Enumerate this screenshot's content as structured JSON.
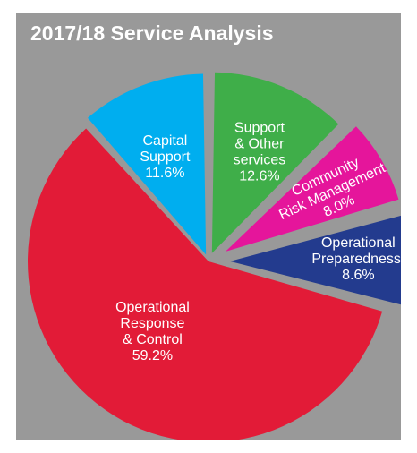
{
  "chart_data": {
    "type": "pie",
    "title": "2017/18 Service Analysis",
    "slices": [
      {
        "label_lines": [
          "Support",
          "& Other",
          "services"
        ],
        "value_text": "12.6%",
        "value": 12.6,
        "color": "#3fae49"
      },
      {
        "label_lines": [
          "Community",
          "Risk Management"
        ],
        "value_text": "8.0%",
        "value": 8.0,
        "color": "#e5159b"
      },
      {
        "label_lines": [
          "Operational",
          "Preparedness,"
        ],
        "value_text": "8.6%",
        "value": 8.6,
        "color": "#233b8e"
      },
      {
        "label_lines": [
          "Operational",
          "Response",
          "& Control"
        ],
        "value_text": "59.2%",
        "value": 59.2,
        "color": "#e21b37"
      },
      {
        "label_lines": [
          "Capital",
          "Support"
        ],
        "value_text": "11.6%",
        "value": 11.6,
        "color": "#00aeef"
      }
    ]
  }
}
